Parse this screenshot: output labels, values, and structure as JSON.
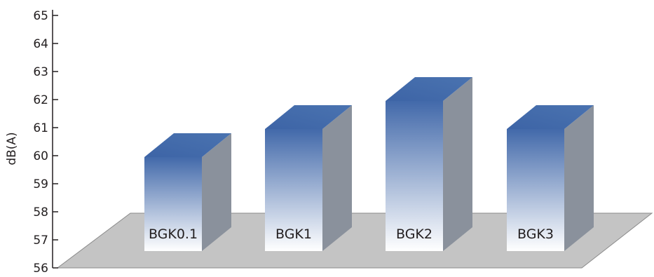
{
  "chart_data": {
    "type": "bar",
    "style": "3d-column",
    "categories": [
      "BGK0.1",
      "BGK1",
      "BGK2",
      "BGK3"
    ],
    "values": [
      60,
      61,
      62,
      61
    ],
    "title": "",
    "xlabel": "",
    "ylabel": "dB(A)",
    "ylim": [
      56,
      65
    ],
    "yticks": [
      56,
      57,
      58,
      59,
      60,
      61,
      62,
      63,
      64,
      65
    ],
    "grid": false,
    "legend": "none"
  },
  "colors": {
    "bar_top": "#4a73b0",
    "bar_front_dark": "#4269aa",
    "bar_front_light": "#ffffff",
    "bar_side": "#8a919c",
    "floor": "#c4c4c4",
    "axis": "#231f20"
  }
}
